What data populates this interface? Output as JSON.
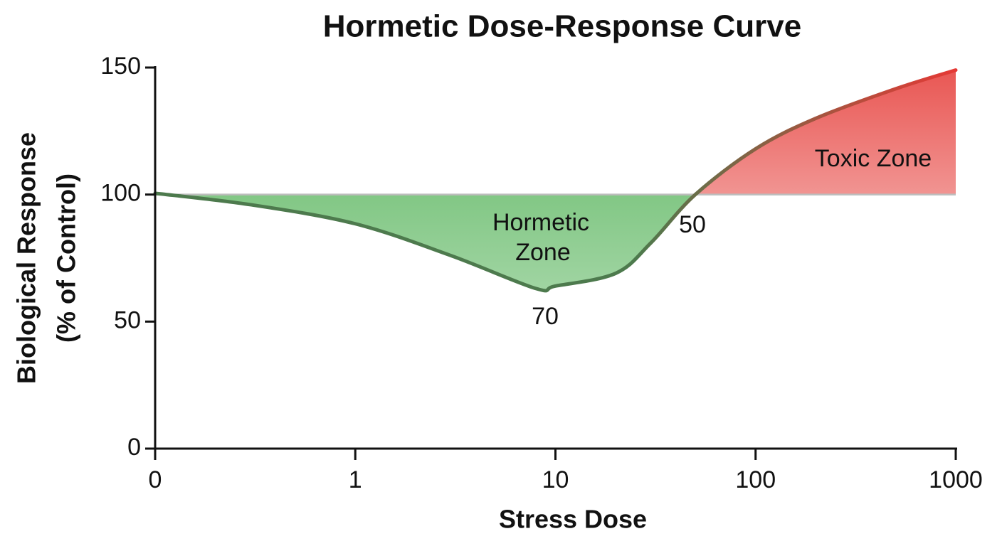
{
  "chart_data": {
    "type": "line",
    "title": "Hormetic Dose-Response Curve",
    "x_label": "Stress Dose",
    "y_label": [
      "Biological Response",
      "(% of Control)"
    ],
    "series": [
      {
        "x": [
          0.1,
          0.3,
          1,
          3,
          8,
          10,
          20,
          30,
          50,
          100,
          200,
          500,
          1000
        ],
        "values": [
          100.5,
          96,
          88.5,
          76,
          63,
          64,
          69,
          81,
          100,
          118,
          130,
          141.6,
          149
        ]
      }
    ],
    "line_color": "#4d7a4d",
    "toxic_color": "#e53935",
    "hormetic_color": "#4caf50",
    "baseline": 100,
    "baseline_color": "#bdbdbd",
    "x_scale": "log",
    "xlim": [
      0.1,
      1000
    ],
    "xticks": [
      {
        "value": 0.1,
        "label": "0"
      },
      1,
      10,
      100,
      1000
    ],
    "ylim": [
      0,
      150
    ],
    "yticks": [
      0,
      50,
      100,
      150
    ],
    "annotations": [
      {
        "lines": [
          "Hormetic",
          "Zone"
        ]
      },
      {
        "lines": [
          "Toxic Zone"
        ]
      },
      {
        "lines": [
          "70"
        ]
      },
      {
        "lines": [
          "50"
        ]
      }
    ]
  }
}
